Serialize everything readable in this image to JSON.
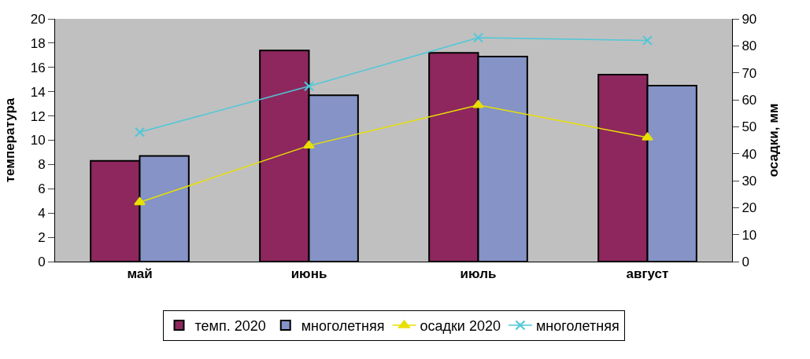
{
  "chart_data": {
    "type": "bar",
    "categories": [
      "май",
      "июнь",
      "июль",
      "август"
    ],
    "ylabel": "температура",
    "y2label": "осадки, мм",
    "ylim": [
      0,
      20
    ],
    "yticks": [
      0,
      2,
      4,
      6,
      8,
      10,
      12,
      14,
      16,
      18,
      20
    ],
    "y2lim": [
      0,
      90
    ],
    "y2ticks": [
      0,
      10,
      20,
      30,
      40,
      50,
      60,
      70,
      80,
      90
    ],
    "series": [
      {
        "name": "темп. 2020",
        "color": "#8e275e",
        "values": [
          8.3,
          17.4,
          17.2,
          15.4
        ]
      },
      {
        "name": "многолетняя",
        "color": "#8593c6",
        "values": [
          8.7,
          13.7,
          16.9,
          14.5
        ]
      },
      {
        "name": "осадки 2020",
        "type": "line",
        "axis": "y2",
        "marker": "triangle",
        "color": "#e8e000",
        "values": [
          22,
          43,
          58,
          46
        ]
      },
      {
        "name": "многолетняя",
        "type": "line",
        "axis": "y2",
        "marker": "cross",
        "color": "#4fc8d8",
        "values": [
          48,
          65,
          83,
          82
        ]
      }
    ],
    "grid": false,
    "legend": "bottom"
  }
}
